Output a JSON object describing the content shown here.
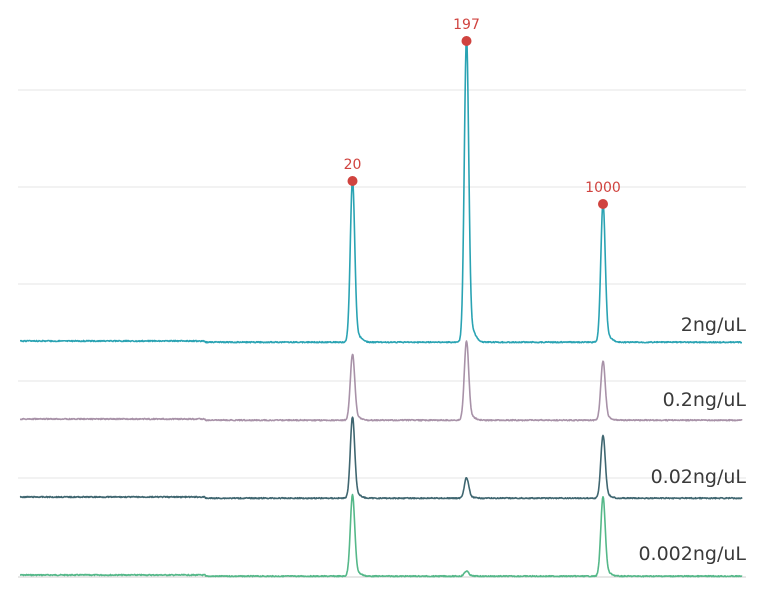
{
  "chart_data": {
    "type": "line",
    "title": "",
    "xlabel": "",
    "ylabel": "",
    "grid": true,
    "x_marker_positions": [
      20,
      197,
      1000
    ],
    "peak_labels": [
      "20",
      "197",
      "1000"
    ],
    "colors": {
      "marker": "#d0433f",
      "grid": "#e4e4e4",
      "axis": "#cfcfcf"
    },
    "series": [
      {
        "name": "2ng/uL",
        "color": "#2aa3b3",
        "baseline": 0,
        "peaks": [
          {
            "marker": "20",
            "height": 160
          },
          {
            "marker": "197",
            "height": 300
          },
          {
            "marker": "1000",
            "height": 137
          }
        ]
      },
      {
        "name": "0.2ng/uL",
        "color": "#a892a8",
        "baseline": 0,
        "peaks": [
          {
            "marker": "20",
            "height": 65
          },
          {
            "marker": "197",
            "height": 78
          },
          {
            "marker": "1000",
            "height": 58
          }
        ]
      },
      {
        "name": "0.02ng/uL",
        "color": "#3f6670",
        "baseline": 0,
        "peaks": [
          {
            "marker": "20",
            "height": 80
          },
          {
            "marker": "197",
            "height": 20
          },
          {
            "marker": "1000",
            "height": 62
          }
        ]
      },
      {
        "name": "0.002ng/uL",
        "color": "#55b889",
        "baseline": 0,
        "peaks": [
          {
            "marker": "20",
            "height": 80
          },
          {
            "marker": "197",
            "height": 5
          },
          {
            "marker": "1000",
            "height": 78
          }
        ]
      }
    ]
  }
}
